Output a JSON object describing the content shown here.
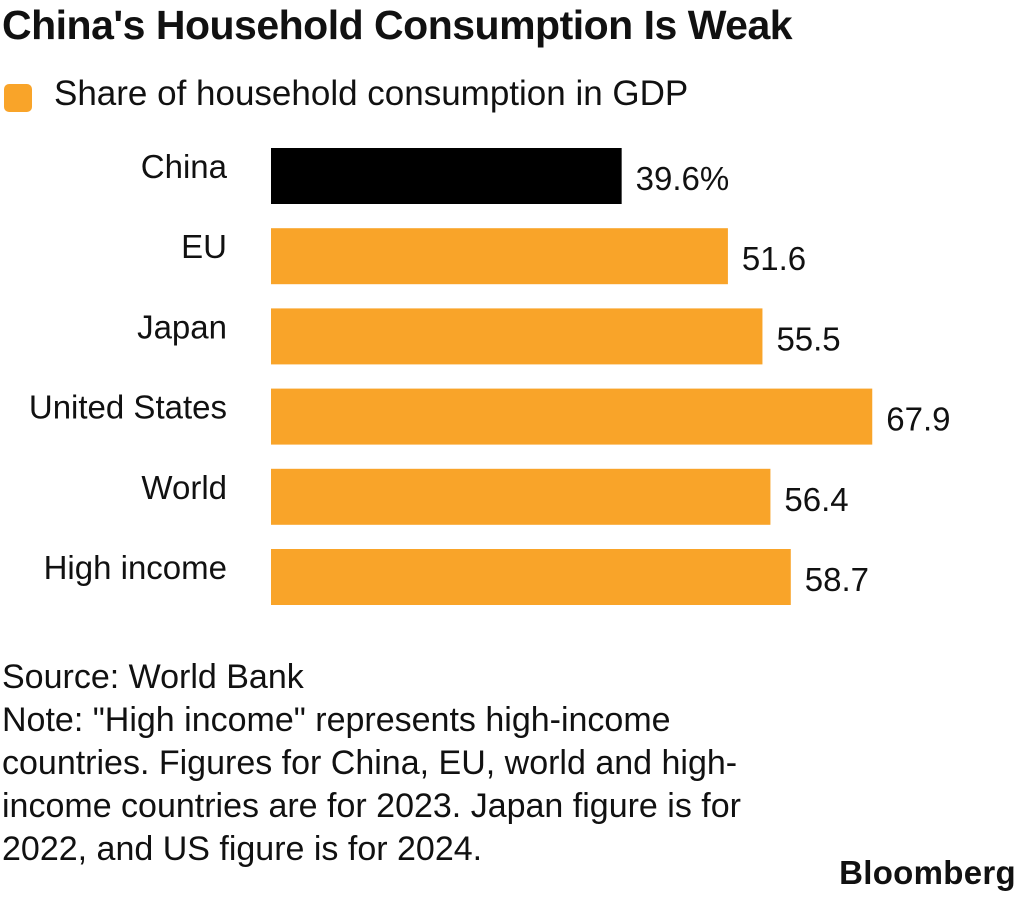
{
  "header": {
    "title": "China's Household Consumption Is Weak",
    "legend_label": "Share of household consumption in GDP"
  },
  "chart_data": {
    "type": "bar",
    "orientation": "horizontal",
    "categories": [
      "China",
      "EU",
      "Japan",
      "United States",
      "World",
      "High income"
    ],
    "series": [
      {
        "name": "Share of household consumption in GDP",
        "values": [
          39.6,
          51.6,
          55.5,
          67.9,
          56.4,
          58.7
        ]
      }
    ],
    "value_labels": [
      "39.6%",
      "51.6",
      "55.5",
      "67.9",
      "56.4",
      "58.7"
    ],
    "title": "China's Household Consumption Is Weak",
    "xlabel": "",
    "ylabel": "",
    "xlim": [
      0,
      70
    ],
    "grid": false,
    "legend": "top-left",
    "colors": {
      "default": "#f9a429",
      "highlight": "#000000",
      "highlight_category": "China"
    }
  },
  "footer": {
    "source": "Source: World Bank",
    "note": "Note: \"High income\" represents high-income countries. Figures for China, EU, world and high-income countries are for 2023. Japan figure is for 2022, and US figure is for 2024.",
    "brand": "Bloomberg"
  }
}
